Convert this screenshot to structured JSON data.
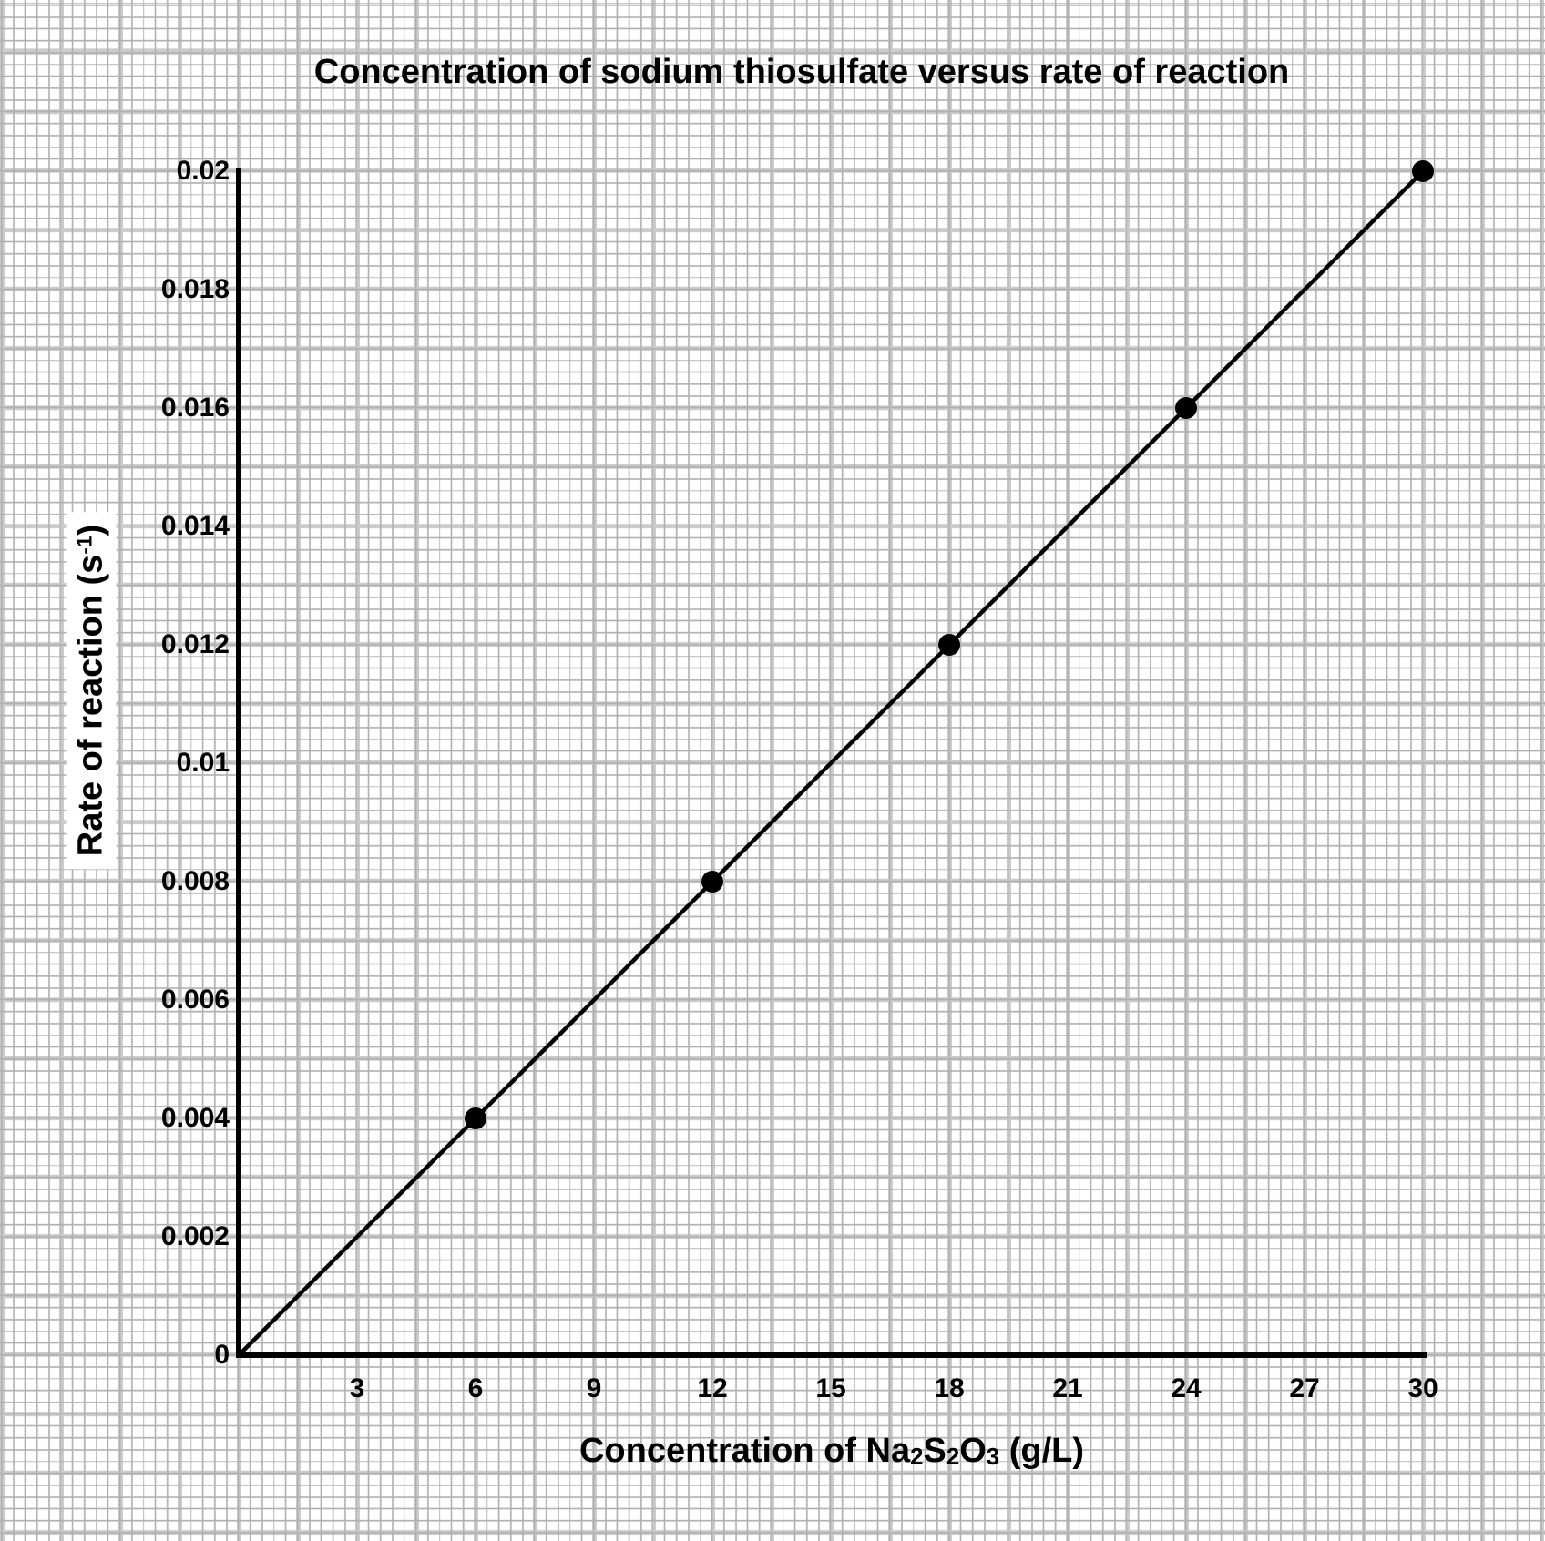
{
  "page": {
    "background_color": "#ffffff",
    "grid_minor_color": "#b0b0b0",
    "grid_major_color": "#cccccc"
  },
  "chart_data": {
    "type": "scatter",
    "title": "Concentration of sodium thiosulfate versus rate of reaction",
    "xlabel": "Concentration of Na2S2O3 (g/L)",
    "ylabel": "Rate of reaction (s^-1)",
    "x_label_parts": {
      "prefix": "Concentration of Na",
      "sub1": "2",
      "mid1": "S",
      "sub2": "2",
      "mid2": "O",
      "sub3": "3",
      "suffix": " (g/L)"
    },
    "y_label_parts": {
      "prefix": "Rate of reaction (s",
      "sup": "-1",
      "suffix": ")"
    },
    "points": [
      {
        "x": 6,
        "y": 0.004
      },
      {
        "x": 12,
        "y": 0.008
      },
      {
        "x": 18,
        "y": 0.012
      },
      {
        "x": 24,
        "y": 0.016
      },
      {
        "x": 30,
        "y": 0.02
      }
    ],
    "line": {
      "x1": 0,
      "y1": 0,
      "x2": 30,
      "y2": 0.02
    },
    "xticks": [
      3,
      6,
      9,
      12,
      15,
      18,
      21,
      24,
      27,
      30
    ],
    "yticks": [
      0,
      0.002,
      0.004,
      0.006,
      0.008,
      0.01,
      0.012,
      0.014,
      0.016,
      0.018,
      0.02
    ],
    "xlim": [
      0,
      30
    ],
    "ylim": [
      0,
      0.02
    ],
    "grid": true,
    "legend": "none",
    "styles": {
      "point_color": "#000000",
      "line_color": "#000000",
      "axis_color": "#000000",
      "text_color": "#000000"
    }
  }
}
